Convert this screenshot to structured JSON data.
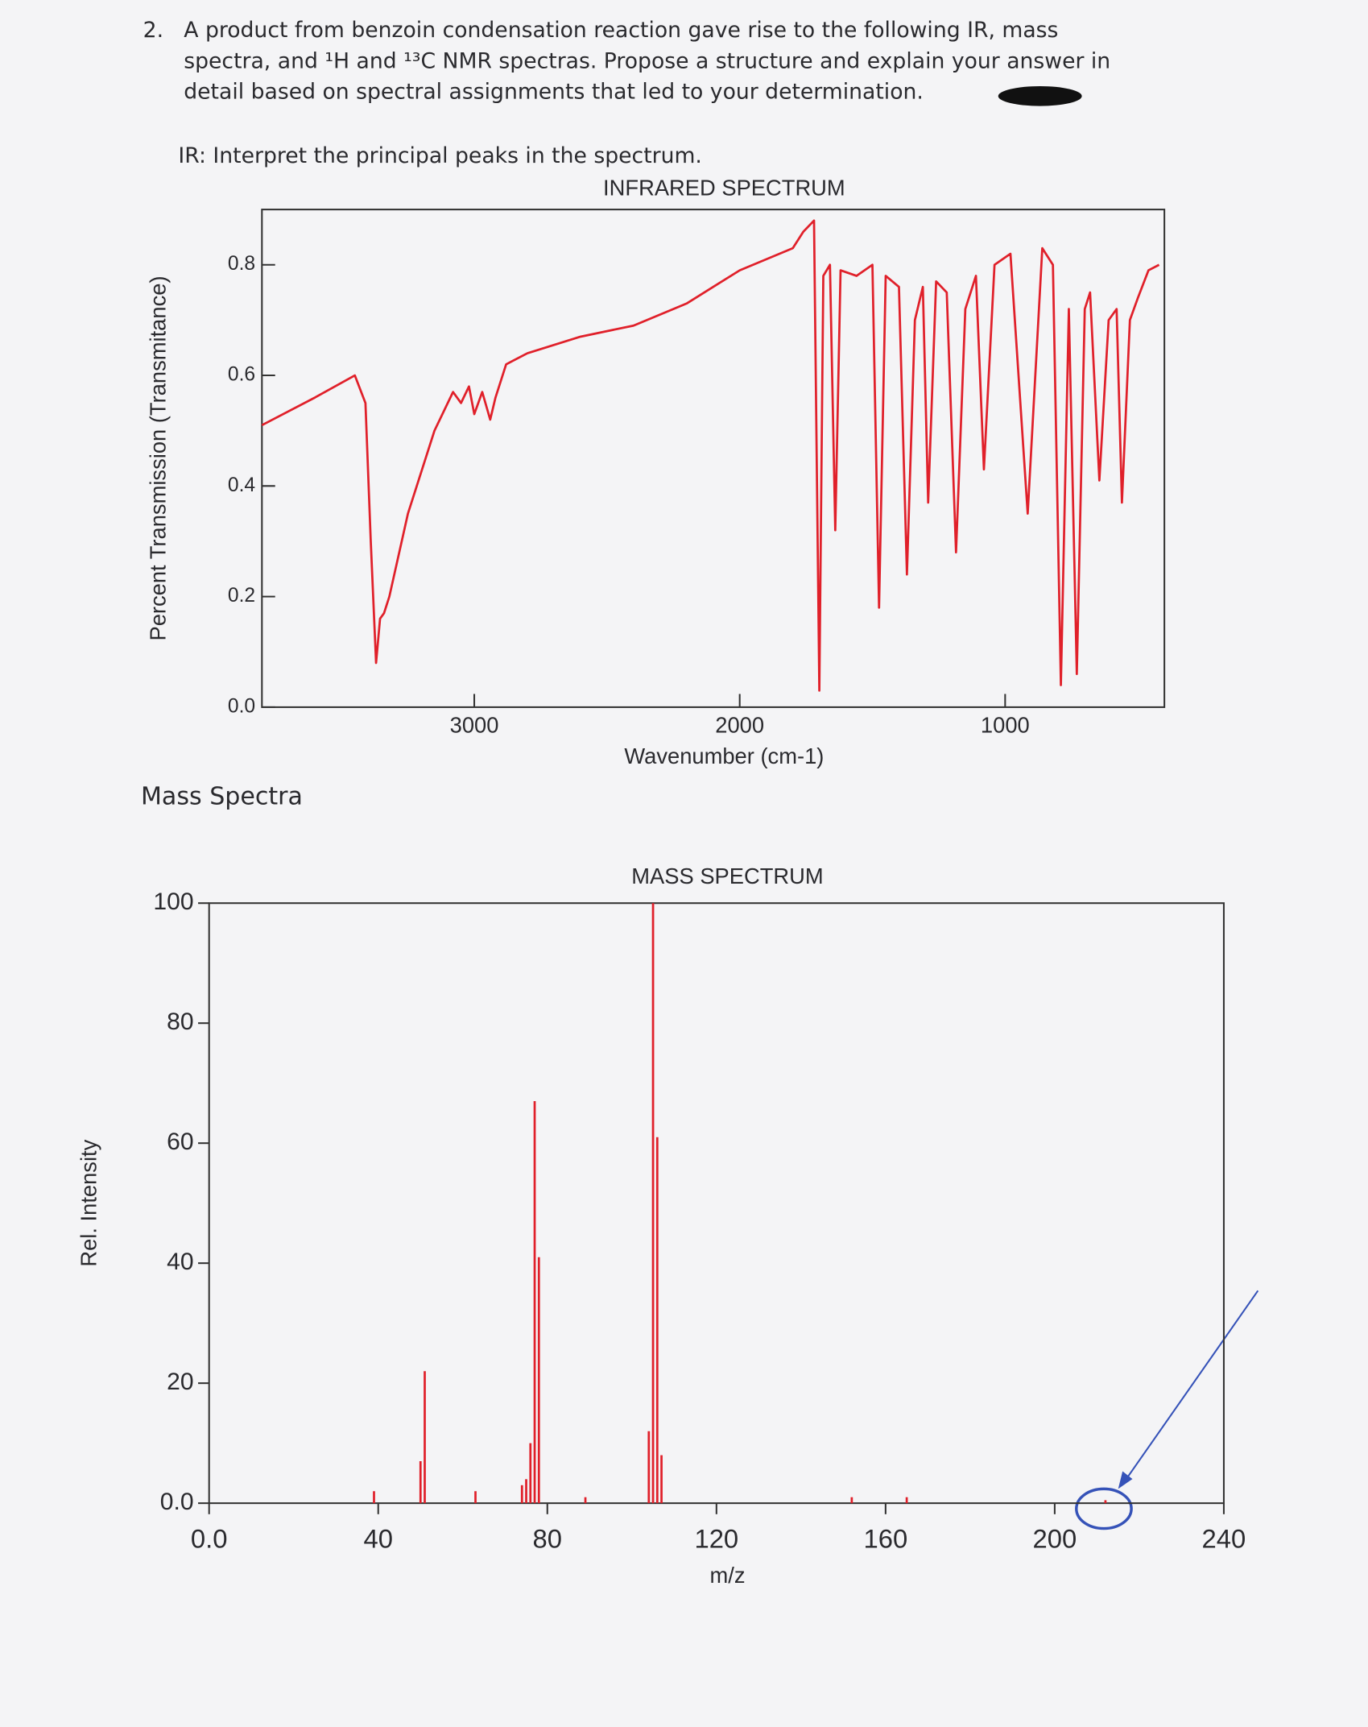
{
  "question": {
    "number": "2.",
    "lines": [
      "A product from benzoin condensation reaction gave rise to the following IR, mass",
      "spectra, and ¹H and ¹³C NMR spectras. Propose a structure and explain your answer in",
      "detail based on spectral assignments that led to your determination."
    ]
  },
  "ir_prompt": "IR: Interpret the principal peaks in the spectrum.",
  "mass_heading": "Mass Spectra",
  "chart_data": [
    {
      "type": "line",
      "title": "INFRARED SPECTRUM",
      "xlabel": "Wavenumber (cm-1)",
      "ylabel": "Percent Transmission (Transmitance)",
      "color": "#e0202a",
      "xlim": [
        3800,
        400
      ],
      "ylim": [
        0,
        0.9
      ],
      "xticks": [
        3000,
        2000,
        1000
      ],
      "yticks": [
        {
          "value": 0,
          "label": "0.0"
        },
        0.2,
        0.4,
        0.6,
        0.8
      ],
      "x": [
        3800,
        3600,
        3450,
        3410,
        3390,
        3370,
        3355,
        3340,
        3320,
        3250,
        3150,
        3080,
        3050,
        3020,
        3000,
        2970,
        2940,
        2920,
        2880,
        2800,
        2600,
        2400,
        2200,
        2000,
        1900,
        1850,
        1800,
        1760,
        1720,
        1700,
        1685,
        1660,
        1640,
        1620,
        1560,
        1500,
        1475,
        1450,
        1400,
        1370,
        1340,
        1310,
        1290,
        1260,
        1220,
        1185,
        1150,
        1110,
        1080,
        1040,
        980,
        915,
        860,
        820,
        790,
        760,
        730,
        700,
        680,
        645,
        610,
        580,
        560,
        530,
        500,
        460,
        420
      ],
      "values": [
        0.51,
        0.56,
        0.6,
        0.55,
        0.3,
        0.08,
        0.16,
        0.17,
        0.2,
        0.35,
        0.5,
        0.57,
        0.55,
        0.58,
        0.53,
        0.57,
        0.52,
        0.56,
        0.62,
        0.64,
        0.67,
        0.69,
        0.73,
        0.79,
        0.81,
        0.82,
        0.83,
        0.86,
        0.88,
        0.03,
        0.78,
        0.8,
        0.32,
        0.79,
        0.78,
        0.8,
        0.18,
        0.78,
        0.76,
        0.24,
        0.7,
        0.76,
        0.37,
        0.77,
        0.75,
        0.28,
        0.72,
        0.78,
        0.43,
        0.8,
        0.82,
        0.35,
        0.83,
        0.8,
        0.04,
        0.72,
        0.06,
        0.72,
        0.75,
        0.41,
        0.7,
        0.72,
        0.37,
        0.7,
        0.74,
        0.79,
        0.8
      ]
    },
    {
      "type": "bar",
      "title": "MASS SPECTRUM",
      "xlabel": "m/z",
      "ylabel": "Rel. Intensity",
      "color": "#e0202a",
      "xlim": [
        0,
        240
      ],
      "ylim": [
        0,
        100
      ],
      "xticks": [
        {
          "value": 0,
          "label": "0.0"
        },
        40,
        80,
        120,
        160,
        200,
        240
      ],
      "yticks": [
        {
          "value": 0,
          "label": "0.0"
        },
        20,
        40,
        60,
        80,
        100
      ],
      "x": [
        39,
        50,
        51,
        63,
        74,
        75,
        76,
        77,
        78,
        89,
        104,
        105,
        106,
        107,
        152,
        165,
        212
      ],
      "values": [
        2,
        7,
        22,
        2,
        3,
        4,
        10,
        67,
        41,
        1,
        12,
        100,
        61,
        8,
        1,
        1,
        0.5
      ]
    }
  ]
}
